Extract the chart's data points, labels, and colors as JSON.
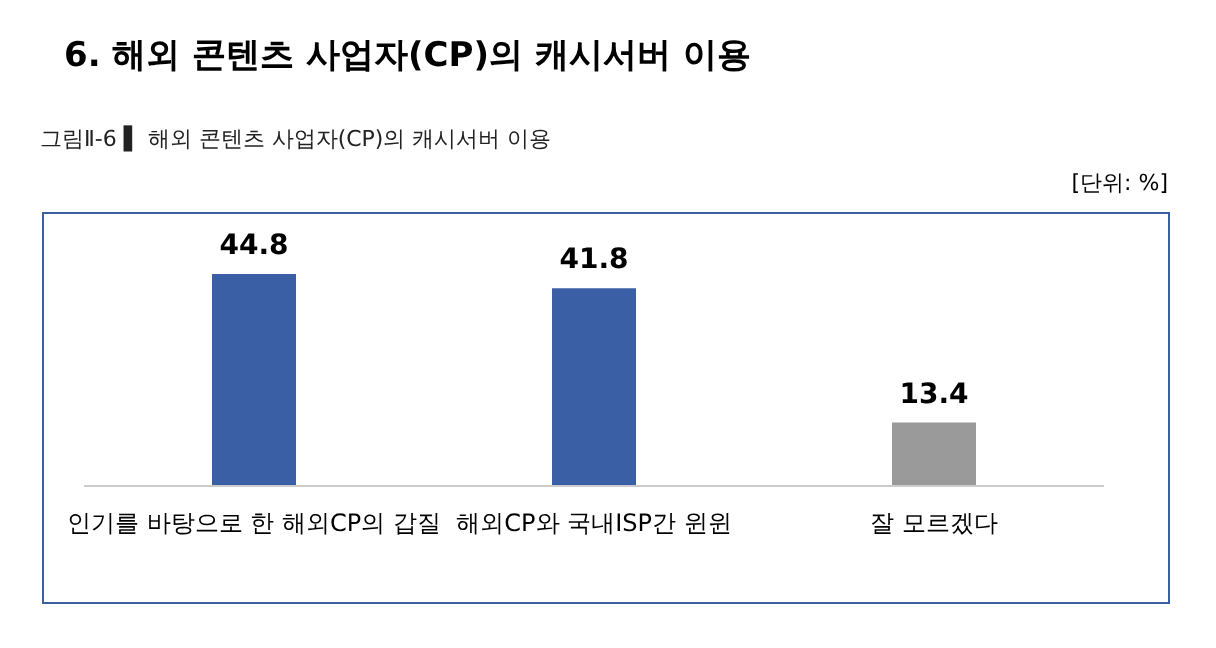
{
  "chart_data": {
    "type": "bar",
    "title": "6. 해외 콘텐츠 사업자(CP)의 캐시서버 이용",
    "subtitle": "그림Ⅱ-6 ▌ 해외 콘텐츠 사업자(CP)의 캐시서버 이용",
    "annotations": [
      "[단위: %]"
    ],
    "categories": [
      "인기를 바탕으로 한 해외CP의 갑질",
      "해외CP와 국내ISP간 윈윈",
      "잘 모르겠다"
    ],
    "values": [
      44.8,
      41.8,
      13.4
    ],
    "colors": [
      "#3a5fa5",
      "#3a5fa5",
      "#9a9a9a"
    ],
    "data_labels": true
  }
}
